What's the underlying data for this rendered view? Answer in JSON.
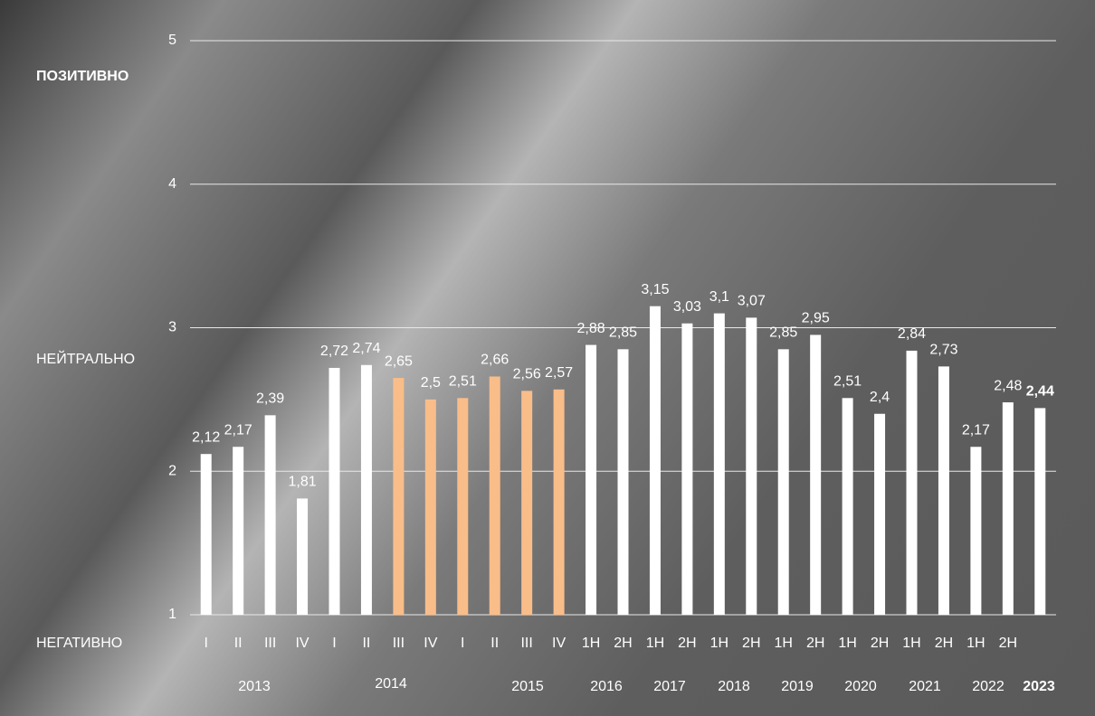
{
  "chart_data": {
    "type": "bar",
    "categories": [
      "I",
      "II",
      "III",
      "IV",
      "I",
      "II",
      "III",
      "IV",
      "I",
      "II",
      "III",
      "IV",
      "1H",
      "2H",
      "1H",
      "2H",
      "1H",
      "2H",
      "1H",
      "2H",
      "1H",
      "2H",
      "1H",
      "2H",
      "1H",
      "2H",
      null
    ],
    "values": [
      2.12,
      2.17,
      2.39,
      1.81,
      2.72,
      2.74,
      2.65,
      2.5,
      2.51,
      2.66,
      2.56,
      2.57,
      2.88,
      2.85,
      3.15,
      3.03,
      3.1,
      3.07,
      2.85,
      2.95,
      2.51,
      2.4,
      2.84,
      2.73,
      2.17,
      2.48,
      2.44
    ],
    "value_labels": [
      "2,12",
      "2,17",
      "2,39",
      "1,81",
      "2,72",
      "2,74",
      "2,65",
      "2,5",
      "2,51",
      "2,66",
      "2,56",
      "2,57",
      "2,88",
      "2,85",
      "3,15",
      "3,03",
      "3,1",
      "3,07",
      "2,85",
      "2,95",
      "2,51",
      "2,4",
      "2,84",
      "2,73",
      "2,17",
      "2,48",
      "2,44"
    ],
    "colors": [
      "#ffffff",
      "#ffffff",
      "#ffffff",
      "#ffffff",
      "#ffffff",
      "#ffffff",
      "#f9bd8a",
      "#f9bd8a",
      "#f9bd8a",
      "#f9bd8a",
      "#f9bd8a",
      "#f9bd8a",
      "#ffffff",
      "#ffffff",
      "#ffffff",
      "#ffffff",
      "#ffffff",
      "#ffffff",
      "#ffffff",
      "#ffffff",
      "#ffffff",
      "#ffffff",
      "#ffffff",
      "#ffffff",
      "#ffffff",
      "#ffffff",
      "#ffffff"
    ],
    "years": [
      "2013",
      "2014",
      "2015",
      "2016",
      "2017",
      "2018",
      "2019",
      "2020",
      "2021",
      "2022",
      "2023"
    ],
    "annotations": [
      "ПОЗИТИВНО",
      "НЕЙТРАЛЬНО",
      "НЕГАТИВНО"
    ],
    "ylim": [
      1,
      5
    ],
    "yticks": [
      1,
      2,
      3,
      4,
      5
    ],
    "grid": true
  }
}
